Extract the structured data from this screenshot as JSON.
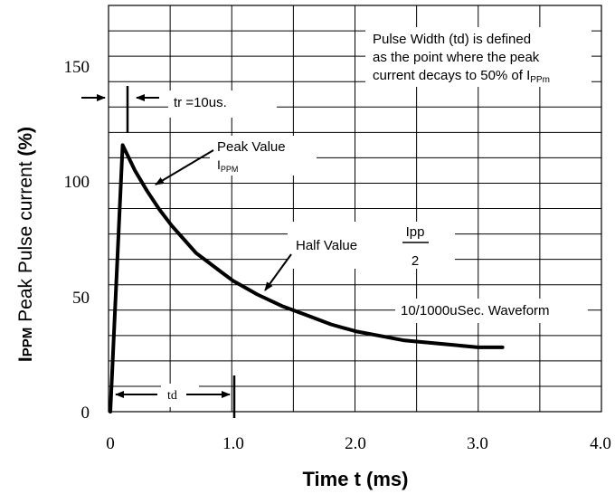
{
  "chart_data": {
    "type": "line",
    "title": "",
    "xlabel": "Time t (ms)",
    "ylabel": {
      "prefix": "I",
      "prefix_sub": "PPM",
      "text": " Peak Pulse current ",
      "unit": "(%)"
    },
    "xlim": [
      0,
      4.0
    ],
    "ylim": [
      0,
      155
    ],
    "x_ticks": [
      {
        "value": 0,
        "label": "0"
      },
      {
        "value": 1.0,
        "label": "1.0"
      },
      {
        "value": 2.0,
        "label": "2.0"
      },
      {
        "value": 3.0,
        "label": "3.0"
      },
      {
        "value": 4.0,
        "label": "4.0"
      }
    ],
    "y_ticks": [
      {
        "value": 0,
        "label": "0"
      },
      {
        "value": 50,
        "label": "50"
      },
      {
        "value": 100,
        "label": "100"
      },
      {
        "value": 150,
        "label": "150"
      }
    ],
    "grid": true,
    "series": [
      {
        "x": [
          0,
          0.1,
          0.2,
          0.3,
          0.4,
          0.5,
          0.6,
          0.7,
          0.8,
          0.9,
          1.0,
          1.2,
          1.4,
          1.6,
          1.8,
          2.0,
          2.2,
          2.4,
          2.6,
          2.8,
          3.0,
          3.2
        ],
        "y": [
          0,
          116,
          105,
          96,
          88,
          81,
          75,
          69,
          65,
          61,
          57,
          51,
          46,
          42,
          38,
          35,
          33,
          31,
          30,
          29,
          28,
          28
        ]
      }
    ],
    "annotations": {
      "pulse_width_def": [
        {
          "text": "Pulse Width (td) is defined"
        },
        {
          "text": "as the point where the peak"
        },
        {
          "text": "current decays to 50% of I",
          "sub": "PPm"
        }
      ],
      "tr_label": "tr =10us.",
      "peak_label": "Peak Value",
      "peak_sub_label": {
        "text": "I",
        "sub": "PPM"
      },
      "half_label": "Half Value",
      "ipp_numerator": "Ipp",
      "ipp_denominator": "2",
      "waveform_label": "10/1000uSec. Waveform",
      "td_label": "td"
    }
  }
}
